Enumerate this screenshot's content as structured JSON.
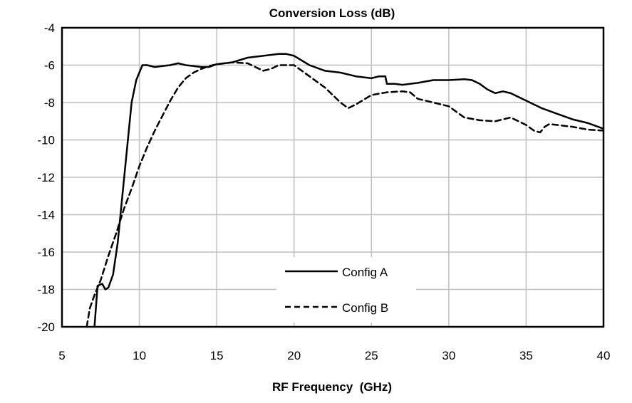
{
  "chart_data": {
    "type": "line",
    "title": "Conversion Loss (dB)",
    "xlabel": "RF Frequency  (GHz)",
    "ylabel": "",
    "xlim": [
      5,
      40
    ],
    "ylim": [
      -20,
      -4
    ],
    "xticks": [
      5,
      10,
      15,
      20,
      25,
      30,
      35,
      40
    ],
    "yticks": [
      -4,
      -6,
      -8,
      -10,
      -12,
      -14,
      -16,
      -18,
      -20
    ],
    "grid": true,
    "legend_position": "bottom-center",
    "series": [
      {
        "name": "Config A",
        "style": "solid",
        "color": "#000000",
        "x": [
          7.1,
          7.3,
          7.6,
          7.8,
          8.0,
          8.3,
          8.6,
          8.9,
          9.2,
          9.5,
          9.8,
          10.2,
          10.5,
          11.0,
          11.5,
          12.0,
          12.5,
          13.0,
          13.5,
          14.0,
          14.5,
          15.0,
          16.0,
          17.0,
          18.0,
          19.0,
          19.5,
          20.0,
          21.0,
          22.0,
          23.0,
          24.0,
          25.0,
          25.5,
          25.9,
          26.0,
          26.5,
          27.0,
          27.5,
          28.0,
          29.0,
          30.0,
          31.0,
          31.5,
          32.0,
          32.5,
          33.0,
          33.5,
          34.0,
          35.0,
          36.0,
          37.0,
          38.0,
          39.0,
          40.0
        ],
        "y": [
          -20.0,
          -17.8,
          -17.7,
          -18.0,
          -17.9,
          -17.2,
          -15.5,
          -13.0,
          -10.5,
          -8.0,
          -6.8,
          -6.0,
          -6.0,
          -6.1,
          -6.05,
          -6.0,
          -5.9,
          -6.0,
          -6.05,
          -6.1,
          -6.1,
          -5.95,
          -5.85,
          -5.6,
          -5.5,
          -5.4,
          -5.4,
          -5.5,
          -6.0,
          -6.3,
          -6.4,
          -6.6,
          -6.7,
          -6.6,
          -6.6,
          -7.0,
          -7.0,
          -7.05,
          -7.0,
          -6.95,
          -6.8,
          -6.8,
          -6.75,
          -6.8,
          -7.0,
          -7.3,
          -7.5,
          -7.4,
          -7.5,
          -7.9,
          -8.3,
          -8.6,
          -8.9,
          -9.1,
          -9.4
        ]
      },
      {
        "name": "Config B",
        "style": "dashed",
        "color": "#000000",
        "x": [
          6.6,
          6.8,
          7.1,
          7.5,
          8.0,
          8.5,
          9.0,
          9.5,
          10.0,
          10.5,
          11.0,
          11.5,
          12.0,
          12.5,
          13.0,
          13.5,
          14.0,
          14.5,
          15.0,
          16.0,
          17.0,
          17.5,
          18.0,
          18.5,
          19.0,
          20.0,
          21.0,
          22.0,
          23.0,
          23.5,
          24.0,
          25.0,
          26.0,
          27.0,
          27.5,
          28.0,
          29.0,
          30.0,
          31.0,
          32.0,
          33.0,
          34.0,
          35.0,
          35.5,
          35.9,
          36.2,
          36.5,
          37.0,
          38.0,
          39.0,
          40.0
        ],
        "y": [
          -20.0,
          -19.0,
          -18.3,
          -17.5,
          -16.2,
          -15.0,
          -13.7,
          -12.6,
          -11.4,
          -10.4,
          -9.5,
          -8.7,
          -7.9,
          -7.2,
          -6.7,
          -6.4,
          -6.2,
          -6.05,
          -5.95,
          -5.85,
          -5.9,
          -6.1,
          -6.3,
          -6.2,
          -6.0,
          -6.0,
          -6.6,
          -7.2,
          -8.0,
          -8.3,
          -8.1,
          -7.6,
          -7.45,
          -7.4,
          -7.45,
          -7.8,
          -8.0,
          -8.2,
          -8.8,
          -8.95,
          -9.0,
          -8.8,
          -9.2,
          -9.5,
          -9.6,
          -9.3,
          -9.15,
          -9.2,
          -9.3,
          -9.45,
          -9.5
        ]
      }
    ]
  }
}
